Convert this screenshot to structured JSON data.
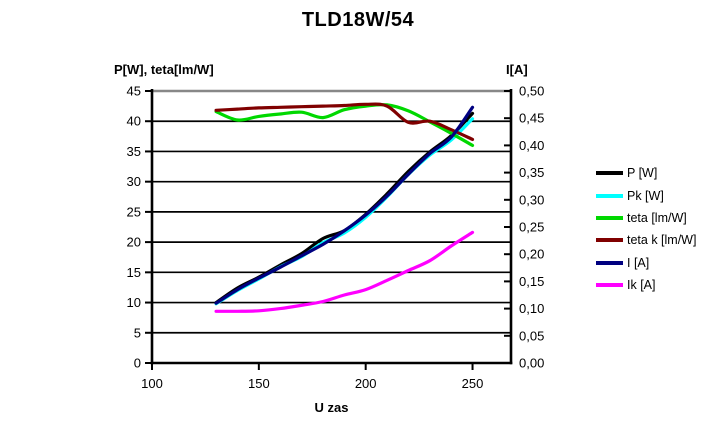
{
  "title": "TLD18W/54",
  "axes": {
    "left_title": "P[W], teta[lm/W]",
    "right_title": "I[A]",
    "x_title": "U zas",
    "left_ticks": [
      "45",
      "40",
      "35",
      "30",
      "25",
      "20",
      "15",
      "10",
      "5",
      "0"
    ],
    "right_ticks": [
      "0,50",
      "0,45",
      "0,40",
      "0,35",
      "0,30",
      "0,25",
      "0,20",
      "0,15",
      "0,10",
      "0,05",
      "0,00"
    ],
    "x_ticks": [
      "100",
      "150",
      "200",
      "250"
    ]
  },
  "colors": {
    "background": "#ffffff",
    "grid": "#000000",
    "top_border": "#888888",
    "axis": "#000000",
    "text": "#000000"
  },
  "chart_data": {
    "type": "line",
    "title": "TLD18W/54",
    "xlabel": "U zas",
    "ylabel_left": "P[W], teta[lm/W]",
    "ylabel_right": "I[A]",
    "x_axis_range_drawn": [
      100,
      268
    ],
    "left_ylim": [
      0,
      45
    ],
    "left_tick_step": 5,
    "right_ylim": [
      0,
      0.5
    ],
    "right_tick_step": 0.05,
    "x_tick_values": [
      100,
      150,
      200,
      250
    ],
    "grid": "horizontal",
    "legend_position": "right",
    "smoothed_lines": true,
    "x": [
      130,
      140,
      150,
      160,
      170,
      180,
      190,
      200,
      210,
      220,
      230,
      240,
      250
    ],
    "series": [
      {
        "name": "P [W]",
        "axis": "left",
        "color": "#000000",
        "values": [
          10.0,
          12.4,
          14.2,
          16.2,
          18.1,
          20.6,
          21.9,
          24.6,
          28.0,
          31.7,
          34.9,
          37.6,
          41.3
        ]
      },
      {
        "name": "Pk [W]",
        "axis": "left",
        "color": "#00ffff",
        "values": [
          9.8,
          12.0,
          13.9,
          15.9,
          17.6,
          19.9,
          21.5,
          24.1,
          27.5,
          31.2,
          34.4,
          36.9,
          40.4
        ]
      },
      {
        "name": "teta [lm/W]",
        "axis": "left",
        "color": "#00d800",
        "values": [
          41.6,
          40.2,
          40.8,
          41.2,
          41.5,
          40.6,
          41.9,
          42.5,
          42.7,
          41.7,
          39.9,
          38.0,
          36.0
        ]
      },
      {
        "name": "teta k [lm/W]",
        "axis": "left",
        "color": "#800000",
        "values": [
          41.8,
          42.0,
          42.2,
          42.3,
          42.4,
          42.5,
          42.6,
          42.8,
          42.5,
          39.8,
          40.0,
          38.6,
          37.0
        ]
      },
      {
        "name": "I [A]",
        "axis": "right",
        "color": "#000080",
        "values": [
          0.11,
          0.135,
          0.156,
          0.176,
          0.197,
          0.218,
          0.243,
          0.272,
          0.307,
          0.347,
          0.385,
          0.415,
          0.47
        ]
      },
      {
        "name": "Ik [A]",
        "axis": "right",
        "color": "#ff00ff",
        "values": [
          0.095,
          0.095,
          0.096,
          0.1,
          0.106,
          0.113,
          0.125,
          0.135,
          0.152,
          0.17,
          0.188,
          0.215,
          0.24
        ]
      }
    ]
  }
}
